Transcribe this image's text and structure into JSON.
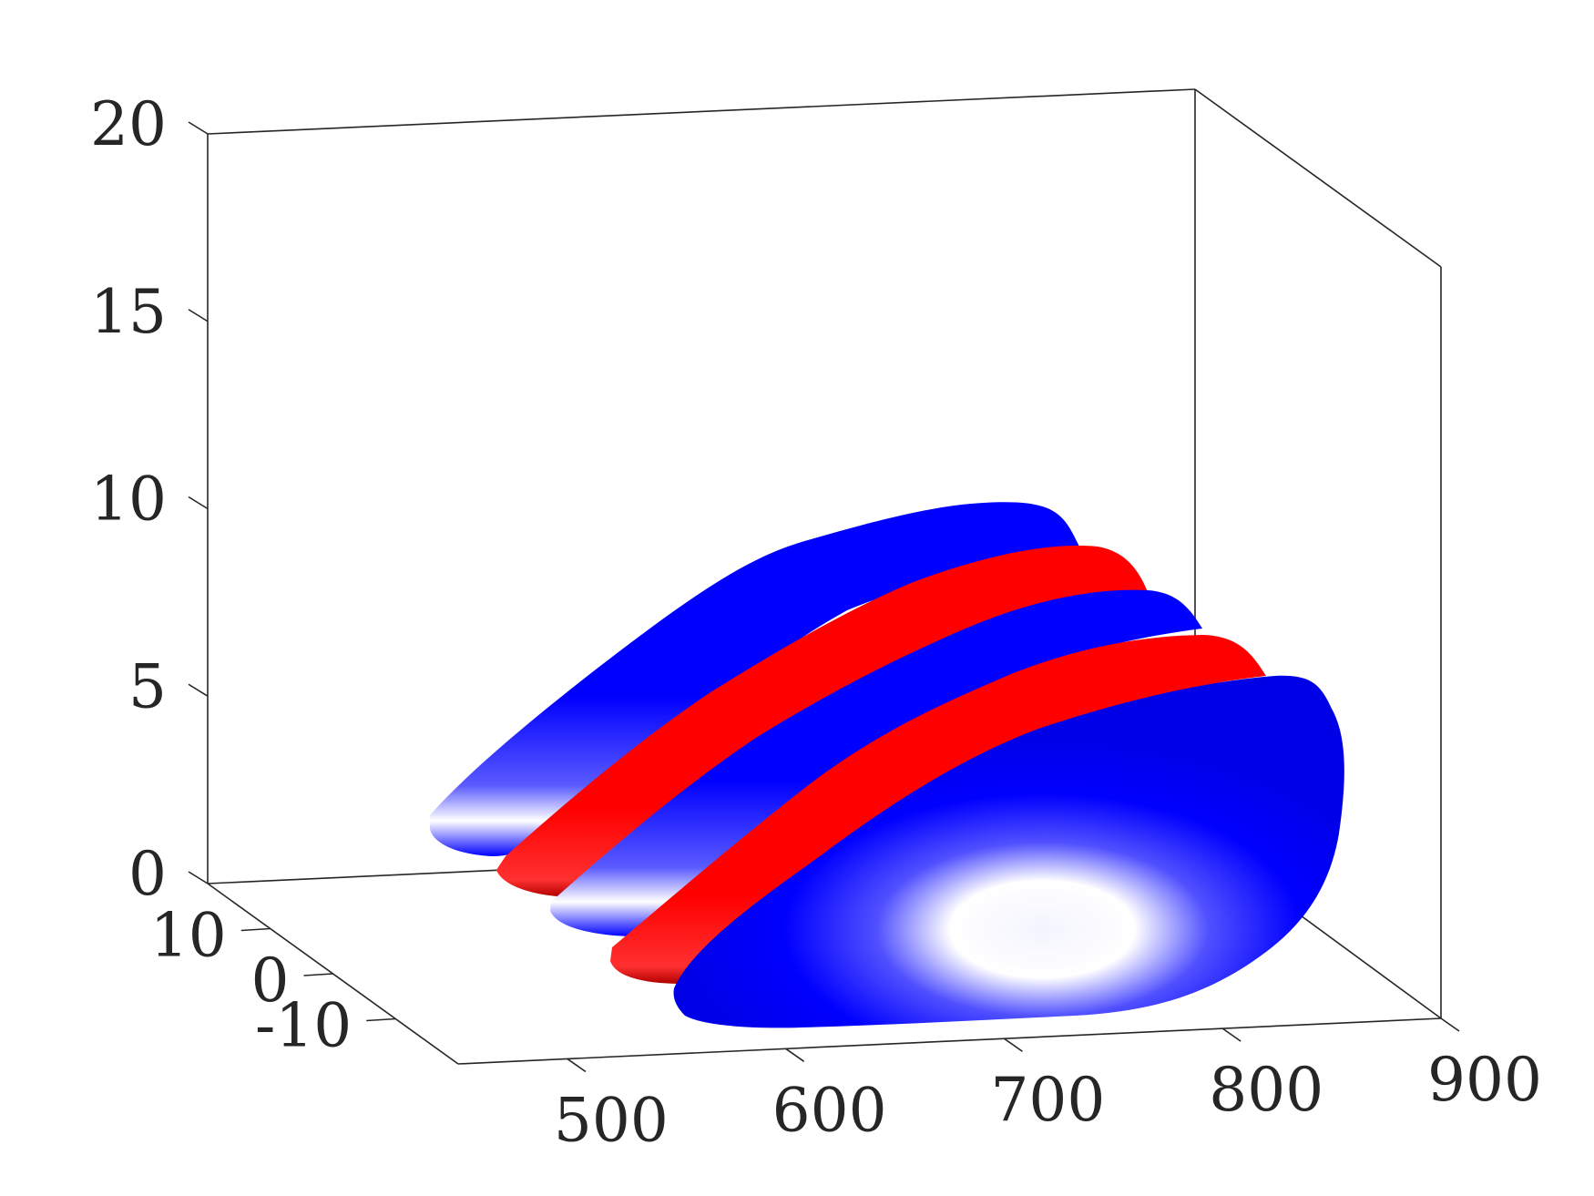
{
  "chart_data": {
    "type": "3d-isosurface",
    "colors": {
      "negative": "#0000ff",
      "positive": "#ff0000",
      "highlight": "#ffffff",
      "axes": "#262626"
    },
    "x_axis": {
      "ticks": [
        "500",
        "600",
        "700",
        "800",
        "900"
      ],
      "range": [
        450,
        900
      ]
    },
    "y_axis": {
      "ticks": [
        "10",
        "0",
        "-10"
      ],
      "range": [
        -20,
        20
      ]
    },
    "z_axis": {
      "ticks": [
        "0",
        "5",
        "10",
        "15",
        "20"
      ],
      "range": [
        0,
        20
      ]
    },
    "grid": false,
    "series": [
      {
        "color": "blue",
        "x_range": [
          470,
          800
        ],
        "z_max": 10.0
      },
      {
        "color": "red",
        "x_range": [
          520,
          830
        ],
        "z_max": 9.0
      },
      {
        "color": "blue",
        "x_range": [
          560,
          860
        ],
        "z_max": 8.0
      },
      {
        "color": "red",
        "x_range": [
          610,
          880
        ],
        "z_max": 6.5
      },
      {
        "color": "blue",
        "x_range": [
          650,
          900
        ],
        "z_max": 5.5
      }
    ]
  }
}
